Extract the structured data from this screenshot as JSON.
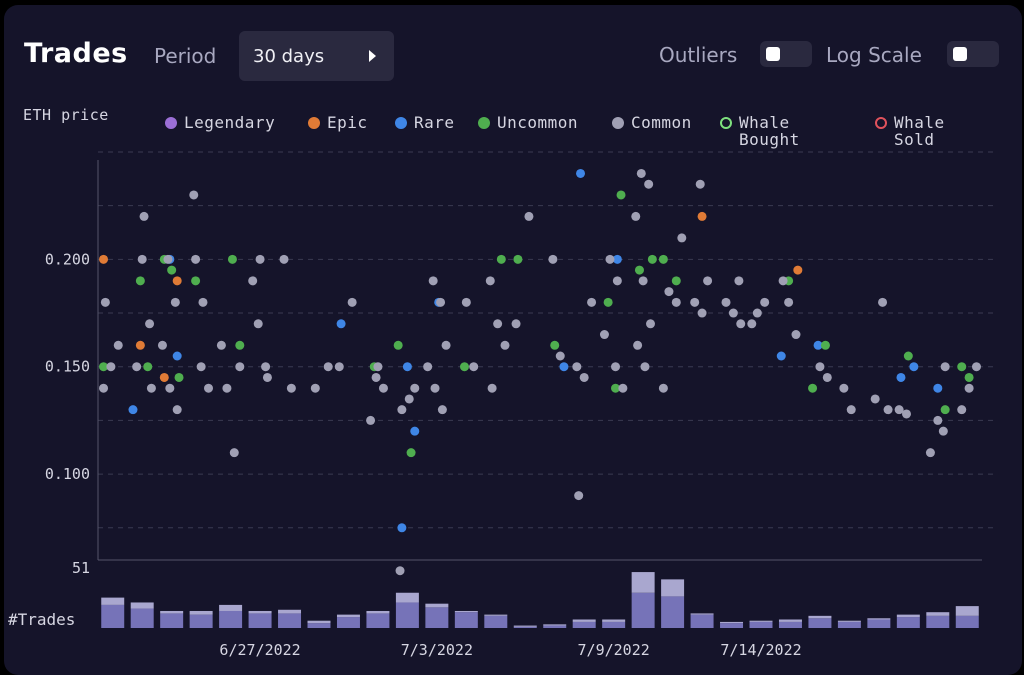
{
  "header": {
    "title": "Trades",
    "period_label": "Period",
    "period_value": "30 days",
    "outliers_label": "Outliers",
    "outliers_on": false,
    "log_scale_label": "Log Scale",
    "log_scale_on": false
  },
  "legend": [
    {
      "label": "Legendary",
      "color": "#9b6fd6",
      "style": "filled"
    },
    {
      "label": "Epic",
      "color": "#e07b36",
      "style": "filled"
    },
    {
      "label": "Rare",
      "color": "#3f86e6",
      "style": "filled"
    },
    {
      "label": "Uncommon",
      "color": "#4fae4f",
      "style": "filled"
    },
    {
      "label": "Common",
      "color": "#a0a0b4",
      "style": "filled"
    },
    {
      "label": "Whale\nBought",
      "color": "#7ee07e",
      "style": "ring"
    },
    {
      "label": "Whale\nSold",
      "color": "#e0525c",
      "style": "ring"
    }
  ],
  "chart_data": [
    {
      "type": "scatter",
      "title": "",
      "ylabel": "ETH price",
      "xlabel": "",
      "y_ticks": [
        0.1,
        0.15,
        0.2
      ],
      "y_tick_labels": [
        "0.100",
        "0.150",
        "0.200"
      ],
      "ylim": [
        0.06,
        0.25
      ],
      "x_domain_days": [
        "6/22/2022",
        "7/21/2022"
      ],
      "x_ticks": [
        "6/27/2022",
        "7/3/2022",
        "7/9/2022",
        "7/14/2022"
      ],
      "grid": "horizontal dashed",
      "series": [
        {
          "name": "Epic",
          "color": "#e07b36",
          "points": [
            [
              "6/22/2022",
              0.2
            ],
            [
              "6/23/2022",
              0.16
            ],
            [
              "6/24/2022",
              0.19
            ],
            [
              "6/24/2022",
              0.145
            ],
            [
              "7/12/2022",
              0.22
            ],
            [
              "7/15/2022",
              0.195
            ]
          ]
        },
        {
          "name": "Rare",
          "color": "#3f86e6",
          "points": [
            [
              "6/23/2022",
              0.13
            ],
            [
              "6/24/2022",
              0.2
            ],
            [
              "6/24/2022",
              0.155
            ],
            [
              "6/30/2022",
              0.17
            ],
            [
              "7/2/2022",
              0.15
            ],
            [
              "7/2/2022",
              0.12
            ],
            [
              "7/2/2022",
              0.075
            ],
            [
              "7/3/2022",
              0.18
            ],
            [
              "7/7/2022",
              0.15
            ],
            [
              "7/8/2022",
              0.24
            ],
            [
              "7/9/2022",
              0.2
            ],
            [
              "7/15/2022",
              0.155
            ],
            [
              "7/16/2022",
              0.16
            ],
            [
              "7/19/2022",
              0.15
            ],
            [
              "7/19/2022",
              0.145
            ],
            [
              "7/20/2022",
              0.14
            ]
          ]
        },
        {
          "name": "Uncommon",
          "color": "#4fae4f",
          "points": [
            [
              "6/22/2022",
              0.15
            ],
            [
              "6/23/2022",
              0.19
            ],
            [
              "6/23/2022",
              0.15
            ],
            [
              "6/24/2022",
              0.2
            ],
            [
              "6/24/2022",
              0.195
            ],
            [
              "6/24/2022",
              0.145
            ],
            [
              "6/25/2022",
              0.19
            ],
            [
              "6/26/2022",
              0.2
            ],
            [
              "6/26/2022",
              0.16
            ],
            [
              "7/1/2022",
              0.15
            ],
            [
              "7/2/2022",
              0.11
            ],
            [
              "7/2/2022",
              0.16
            ],
            [
              "7/4/2022",
              0.15
            ],
            [
              "7/5/2022",
              0.2
            ],
            [
              "7/6/2022",
              0.2
            ],
            [
              "7/7/2022",
              0.16
            ],
            [
              "7/9/2022",
              0.23
            ],
            [
              "7/9/2022",
              0.18
            ],
            [
              "7/9/2022",
              0.14
            ],
            [
              "7/10/2022",
              0.2
            ],
            [
              "7/10/2022",
              0.195
            ],
            [
              "7/11/2022",
              0.19
            ],
            [
              "7/11/2022",
              0.2
            ],
            [
              "7/15/2022",
              0.19
            ],
            [
              "7/16/2022",
              0.16
            ],
            [
              "7/16/2022",
              0.14
            ],
            [
              "7/19/2022",
              0.155
            ],
            [
              "7/20/2022",
              0.13
            ],
            [
              "7/21/2022",
              0.15
            ],
            [
              "7/21/2022",
              0.145
            ]
          ]
        },
        {
          "name": "Common",
          "color": "#a0a0b4",
          "points": [
            [
              "6/22/2022",
              0.14
            ],
            [
              "6/22/2022",
              0.15
            ],
            [
              "6/22/2022",
              0.16
            ],
            [
              "6/22/2022",
              0.18
            ],
            [
              "6/23/2022",
              0.2
            ],
            [
              "6/23/2022",
              0.17
            ],
            [
              "6/23/2022",
              0.15
            ],
            [
              "6/23/2022",
              0.22
            ],
            [
              "6/23/2022",
              0.14
            ],
            [
              "6/24/2022",
              0.2
            ],
            [
              "6/24/2022",
              0.18
            ],
            [
              "6/24/2022",
              0.16
            ],
            [
              "6/24/2022",
              0.14
            ],
            [
              "6/24/2022",
              0.13
            ],
            [
              "6/25/2022",
              0.23
            ],
            [
              "6/25/2022",
              0.15
            ],
            [
              "6/25/2022",
              0.14
            ],
            [
              "6/25/2022",
              0.2
            ],
            [
              "6/25/2022",
              0.18
            ],
            [
              "6/26/2022",
              0.15
            ],
            [
              "6/26/2022",
              0.14
            ],
            [
              "6/26/2022",
              0.11
            ],
            [
              "6/26/2022",
              0.16
            ],
            [
              "6/27/2022",
              0.17
            ],
            [
              "6/27/2022",
              0.15
            ],
            [
              "6/27/2022",
              0.19
            ],
            [
              "6/27/2022",
              0.2
            ],
            [
              "6/27/2022",
              0.145
            ],
            [
              "6/28/2022",
              0.2
            ],
            [
              "6/28/2022",
              0.14
            ],
            [
              "6/29/2022",
              0.15
            ],
            [
              "6/29/2022",
              0.14
            ],
            [
              "6/30/2022",
              0.18
            ],
            [
              "6/30/2022",
              0.15
            ],
            [
              "7/1/2022",
              0.145
            ],
            [
              "7/1/2022",
              0.14
            ],
            [
              "7/1/2022",
              0.125
            ],
            [
              "7/1/2022",
              0.15
            ],
            [
              "7/2/2022",
              0.14
            ],
            [
              "7/2/2022",
              0.13
            ],
            [
              "7/2/2022",
              0.135
            ],
            [
              "7/3/2022",
              0.16
            ],
            [
              "7/3/2022",
              0.19
            ],
            [
              "7/3/2022",
              0.18
            ],
            [
              "7/3/2022",
              0.15
            ],
            [
              "7/3/2022",
              0.14
            ],
            [
              "7/3/2022",
              0.13
            ],
            [
              "7/2/2022",
              0.055
            ],
            [
              "7/4/2022",
              0.18
            ],
            [
              "7/4/2022",
              0.15
            ],
            [
              "7/5/2022",
              0.19
            ],
            [
              "7/5/2022",
              0.17
            ],
            [
              "7/5/2022",
              0.16
            ],
            [
              "7/5/2022",
              0.14
            ],
            [
              "7/6/2022",
              0.22
            ],
            [
              "7/6/2022",
              0.17
            ],
            [
              "7/7/2022",
              0.2
            ],
            [
              "7/7/2022",
              0.155
            ],
            [
              "7/8/2022",
              0.15
            ],
            [
              "7/8/2022",
              0.145
            ],
            [
              "7/8/2022",
              0.18
            ],
            [
              "7/8/2022",
              0.09
            ],
            [
              "7/9/2022",
              0.15
            ],
            [
              "7/9/2022",
              0.14
            ],
            [
              "7/9/2022",
              0.2
            ],
            [
              "7/9/2022",
              0.19
            ],
            [
              "7/9/2022",
              0.165
            ],
            [
              "7/10/2022",
              0.24
            ],
            [
              "7/10/2022",
              0.235
            ],
            [
              "7/10/2022",
              0.22
            ],
            [
              "7/10/2022",
              0.19
            ],
            [
              "7/10/2022",
              0.17
            ],
            [
              "7/10/2022",
              0.16
            ],
            [
              "7/10/2022",
              0.15
            ],
            [
              "7/11/2022",
              0.21
            ],
            [
              "7/11/2022",
              0.185
            ],
            [
              "7/11/2022",
              0.18
            ],
            [
              "7/11/2022",
              0.14
            ],
            [
              "7/12/2022",
              0.235
            ],
            [
              "7/12/2022",
              0.19
            ],
            [
              "7/12/2022",
              0.18
            ],
            [
              "7/12/2022",
              0.175
            ],
            [
              "7/13/2022",
              0.19
            ],
            [
              "7/13/2022",
              0.18
            ],
            [
              "7/13/2022",
              0.175
            ],
            [
              "7/13/2022",
              0.17
            ],
            [
              "7/14/2022",
              0.175
            ],
            [
              "7/14/2022",
              0.18
            ],
            [
              "7/14/2022",
              0.17
            ],
            [
              "7/15/2022",
              0.18
            ],
            [
              "7/15/2022",
              0.165
            ],
            [
              "7/15/2022",
              0.19
            ],
            [
              "7/16/2022",
              0.15
            ],
            [
              "7/16/2022",
              0.145
            ],
            [
              "7/17/2022",
              0.14
            ],
            [
              "7/17/2022",
              0.13
            ],
            [
              "7/18/2022",
              0.13
            ],
            [
              "7/18/2022",
              0.135
            ],
            [
              "7/18/2022",
              0.18
            ],
            [
              "7/19/2022",
              0.13
            ],
            [
              "7/19/2022",
              0.128
            ],
            [
              "7/20/2022",
              0.12
            ],
            [
              "7/20/2022",
              0.11
            ],
            [
              "7/20/2022",
              0.125
            ],
            [
              "7/20/2022",
              0.15
            ],
            [
              "7/21/2022",
              0.13
            ],
            [
              "7/21/2022",
              0.14
            ],
            [
              "7/21/2022",
              0.15
            ]
          ]
        }
      ]
    },
    {
      "type": "bar",
      "ylabel": "#Trades",
      "y_max_label": "51",
      "ylim": [
        0,
        51
      ],
      "categories": [
        "6/22/2022",
        "6/23/2022",
        "6/24/2022",
        "6/25/2022",
        "6/26/2022",
        "6/27/2022",
        "6/28/2022",
        "6/29/2022",
        "6/30/2022",
        "7/1/2022",
        "7/2/2022",
        "7/3/2022",
        "7/4/2022",
        "7/5/2022",
        "7/6/2022",
        "7/7/2022",
        "7/8/2022",
        "7/9/2022",
        "7/10/2022",
        "7/11/2022",
        "7/12/2022",
        "7/13/2022",
        "7/14/2022",
        "7/15/2022",
        "7/16/2022",
        "7/17/2022",
        "7/18/2022",
        "7/19/2022",
        "7/20/2022",
        "7/21/2022"
      ],
      "series": [
        {
          "name": "",
          "color": "#7673b8",
          "values": [
            19,
            16,
            12,
            11,
            14,
            12,
            12,
            4,
            9,
            12,
            21,
            17,
            13,
            10,
            1,
            2,
            5,
            5,
            29,
            26,
            11,
            4,
            5,
            5,
            8,
            5,
            7,
            9,
            10,
            10
          ]
        },
        {
          "name": "",
          "color": "#a9a7cf",
          "values": [
            6,
            5,
            2,
            3,
            5,
            2,
            3,
            2,
            2,
            2,
            8,
            3,
            1,
            1,
            1,
            1,
            2,
            2,
            17,
            14,
            1,
            1,
            1,
            2,
            2,
            1,
            1,
            2,
            3,
            8
          ]
        }
      ]
    }
  ],
  "labels": {
    "eth_price": "ETH price",
    "trades": "#Trades"
  }
}
